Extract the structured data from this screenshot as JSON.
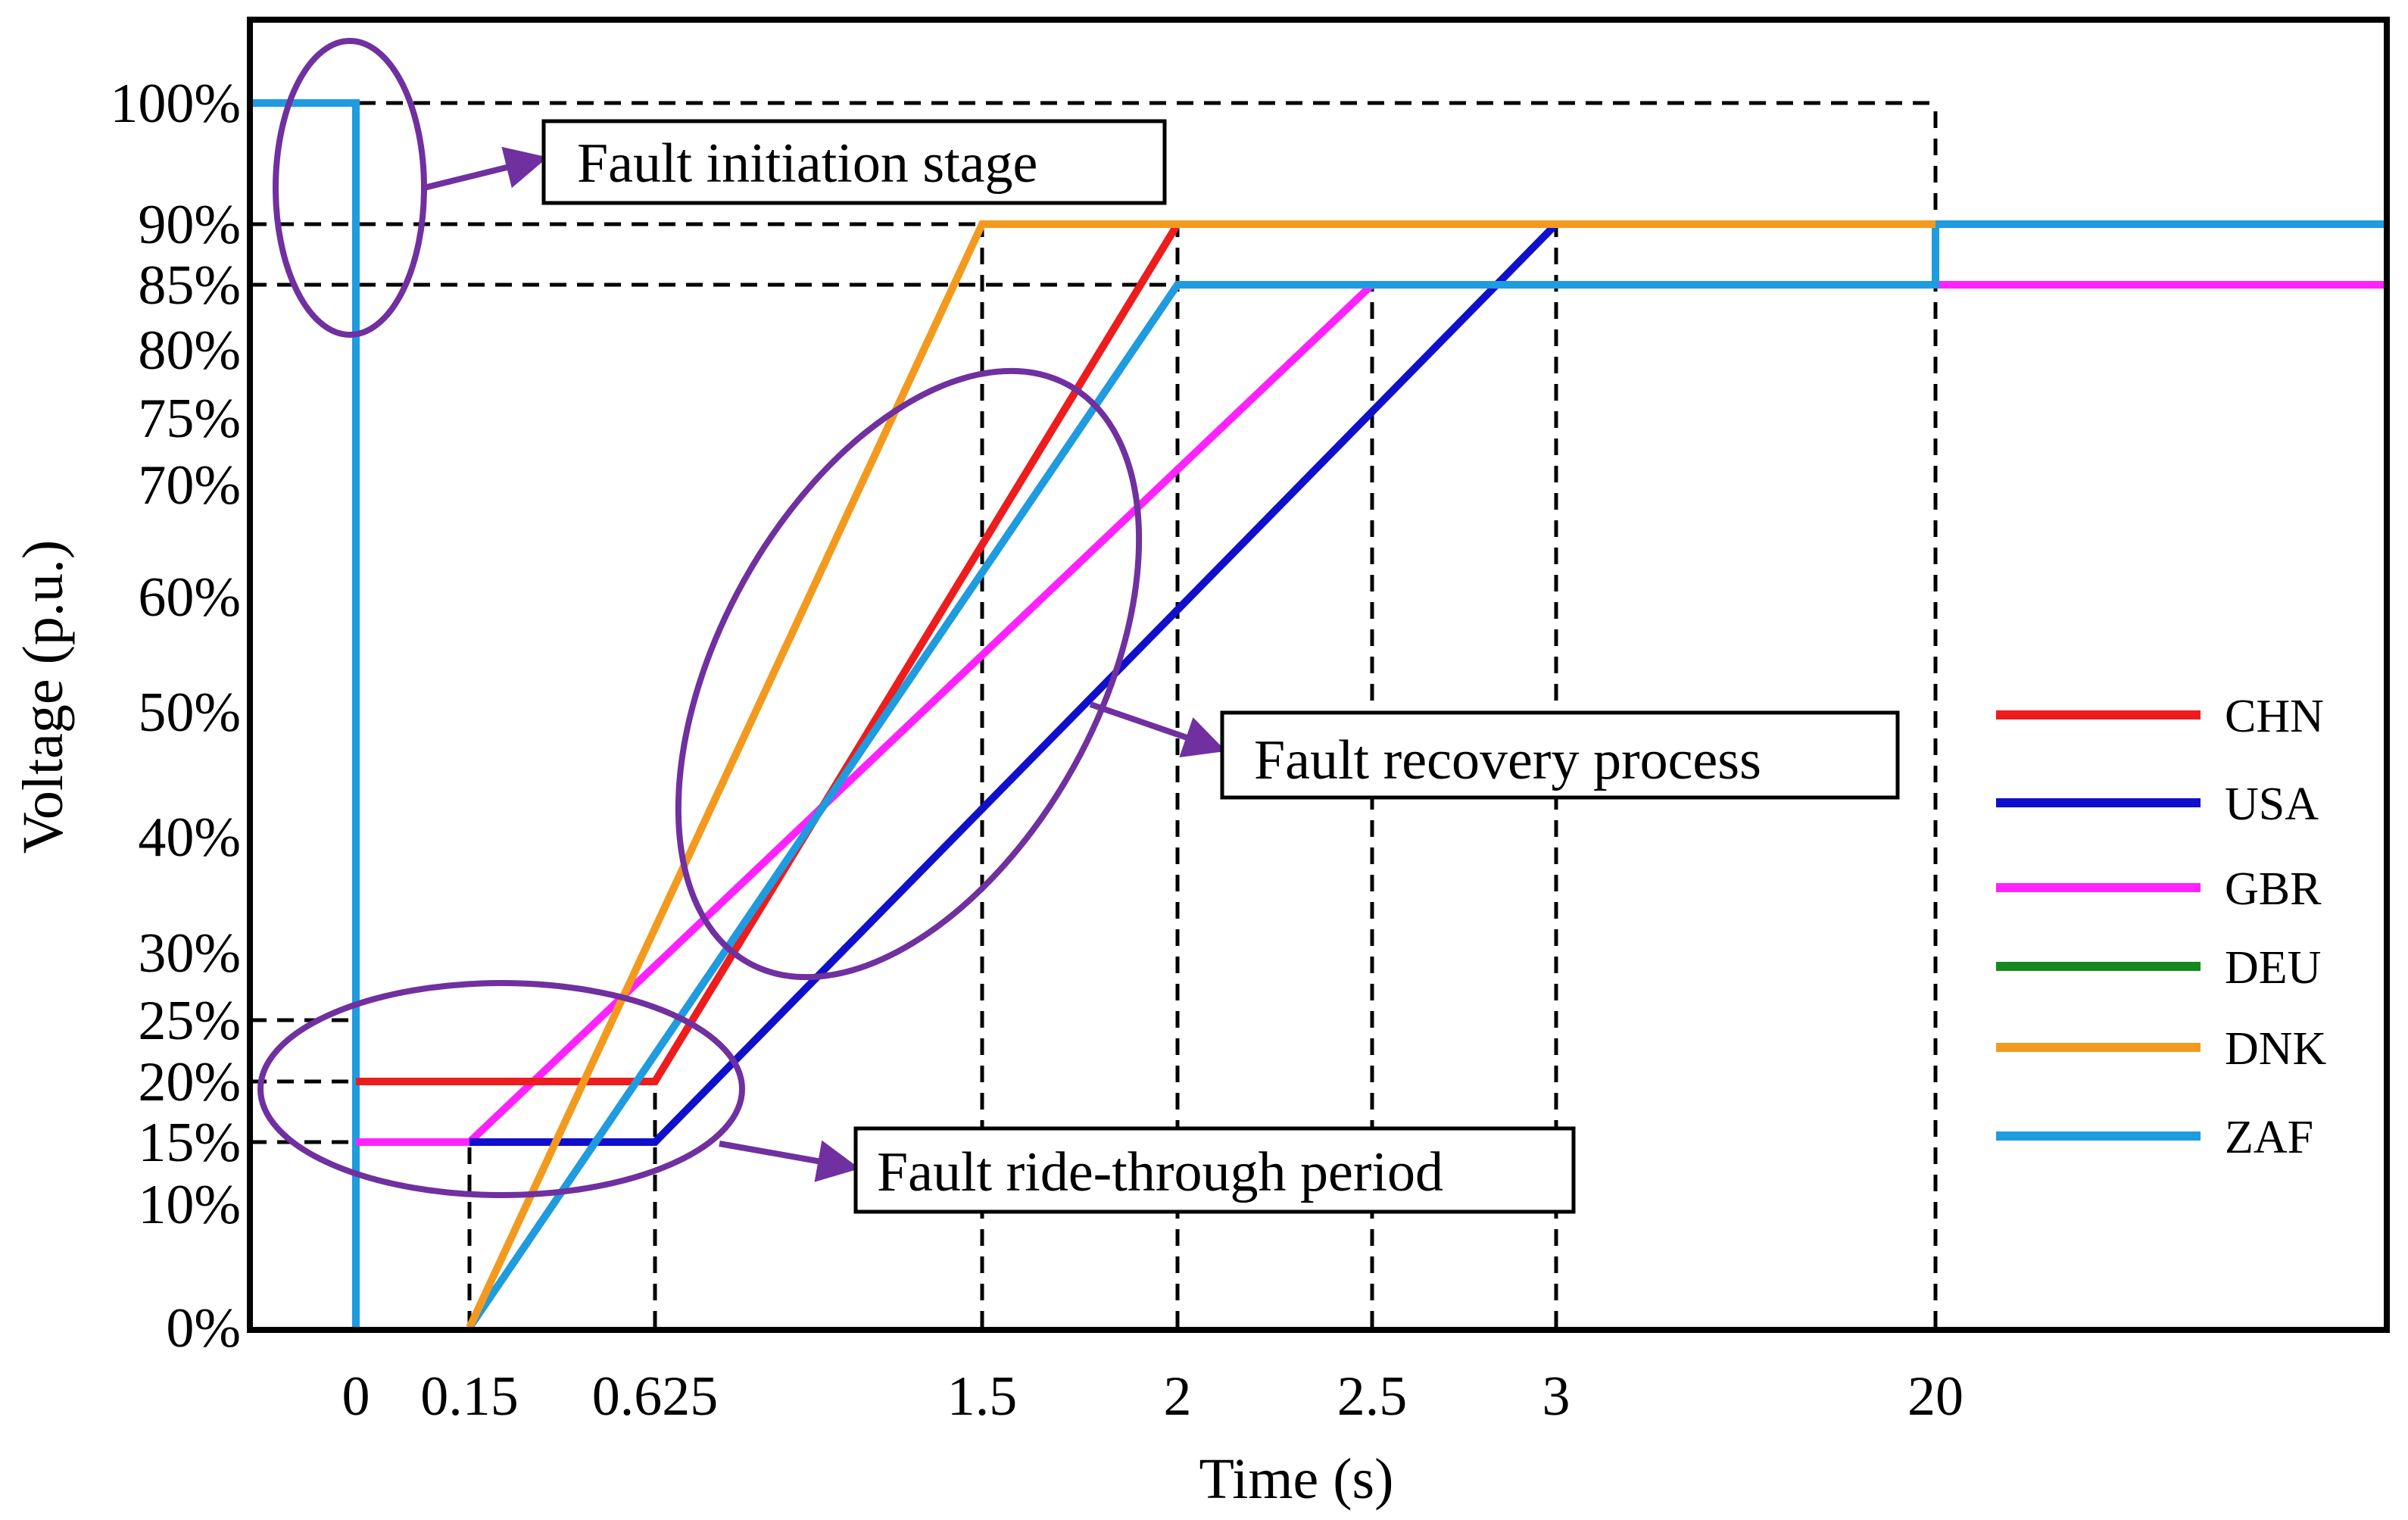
{
  "chart_data": {
    "type": "line",
    "title": "",
    "xlabel": "Time (s)",
    "ylabel": "Voltage (p.u.)",
    "x_ticks": [
      {
        "label": "0",
        "value": 0
      },
      {
        "label": "0.15",
        "value": 0.15
      },
      {
        "label": "0.625",
        "value": 0.625
      },
      {
        "label": "1.5",
        "value": 1.5
      },
      {
        "label": "2",
        "value": 2
      },
      {
        "label": "2.5",
        "value": 2.5
      },
      {
        "label": "3",
        "value": 3
      },
      {
        "label": "20",
        "value": 20
      }
    ],
    "y_ticks": [
      {
        "label": "0%",
        "value": 0
      },
      {
        "label": "10%",
        "value": 10
      },
      {
        "label": "15%",
        "value": 15
      },
      {
        "label": "20%",
        "value": 20
      },
      {
        "label": "25%",
        "value": 25
      },
      {
        "label": "30%",
        "value": 30
      },
      {
        "label": "40%",
        "value": 40
      },
      {
        "label": "50%",
        "value": 50
      },
      {
        "label": "60%",
        "value": 60
      },
      {
        "label": "70%",
        "value": 70
      },
      {
        "label": "75%",
        "value": 75
      },
      {
        "label": "80%",
        "value": 80
      },
      {
        "label": "85%",
        "value": 85
      },
      {
        "label": "90%",
        "value": 90
      },
      {
        "label": "100%",
        "value": 100
      }
    ],
    "x_range": [
      "-0.5 (left edge)",
      "beyond 20 (right edge)"
    ],
    "series": [
      {
        "name": "ZAF",
        "color": "#1f9be0",
        "points": [
          [
            -0.5,
            100
          ],
          [
            0,
            100
          ],
          [
            0,
            0
          ]
        ]
      },
      {
        "name": "DEU",
        "color": "#138a1d",
        "points": []
      },
      {
        "name": "GBR",
        "color": "#ff22ff",
        "points": [
          [
            0,
            15
          ],
          [
            0.15,
            15
          ],
          [
            2.5,
            85
          ],
          [
            30,
            85
          ]
        ]
      },
      {
        "name": "USA",
        "color": "#1010cc",
        "points": [
          [
            0.15,
            15
          ],
          [
            0.625,
            15
          ],
          [
            3,
            90
          ]
        ]
      },
      {
        "name": "CHN",
        "color": "#ee1c1c",
        "points": [
          [
            0,
            20
          ],
          [
            0.625,
            20
          ],
          [
            2,
            90
          ]
        ]
      },
      {
        "name": "ZAF",
        "color": "#1f9be0",
        "points": [
          [
            0.15,
            0
          ],
          [
            2,
            85
          ],
          [
            20,
            85
          ],
          [
            20,
            90
          ],
          [
            30,
            90
          ]
        ]
      },
      {
        "name": "DNK",
        "color": "#f39a1e",
        "points": [
          [
            0.15,
            0
          ],
          [
            1.5,
            90
          ],
          [
            20,
            90
          ]
        ]
      }
    ],
    "reference_lines": {
      "horizontal": [
        {
          "y": 100,
          "x_from": -0.5,
          "x_to": 20
        },
        {
          "y": 90,
          "x_from": -0.5,
          "x_to": 1.5
        },
        {
          "y": 85,
          "x_from": -0.5,
          "x_to": 2
        },
        {
          "y": 25,
          "x_from": -0.5,
          "x_to": 0
        },
        {
          "y": 20,
          "x_from": -0.5,
          "x_to": 0
        },
        {
          "y": 15,
          "x_from": -0.5,
          "x_to": 0
        }
      ],
      "vertical": [
        {
          "x": 0.15,
          "y_from": 0,
          "y_to": 15
        },
        {
          "x": 0.625,
          "y_from": 0,
          "y_to": 20
        },
        {
          "x": 1.5,
          "y_from": 0,
          "y_to": 90
        },
        {
          "x": 2,
          "y_from": 0,
          "y_to": 90
        },
        {
          "x": 2.5,
          "y_from": 0,
          "y_to": 85
        },
        {
          "x": 3,
          "y_from": 0,
          "y_to": 90
        },
        {
          "x": 20,
          "y_from": 0,
          "y_to": 100
        }
      ]
    },
    "legend": [
      {
        "label": "CHN",
        "color": "#ee1c1c"
      },
      {
        "label": "USA",
        "color": "#1010cc"
      },
      {
        "label": "GBR",
        "color": "#ff22ff"
      },
      {
        "label": "DEU",
        "color": "#138a1d"
      },
      {
        "label": "DNK",
        "color": "#f39a1e"
      },
      {
        "label": "ZAF",
        "color": "#1f9be0"
      }
    ],
    "legend_position": "right",
    "annotations": [
      {
        "id": "initiation",
        "text": "Fault initiation stage"
      },
      {
        "id": "recovery",
        "text": "Fault recovery process"
      },
      {
        "id": "ridethrough",
        "text": "Fault ride-through period"
      }
    ],
    "annotation_color": "#7030a0"
  }
}
